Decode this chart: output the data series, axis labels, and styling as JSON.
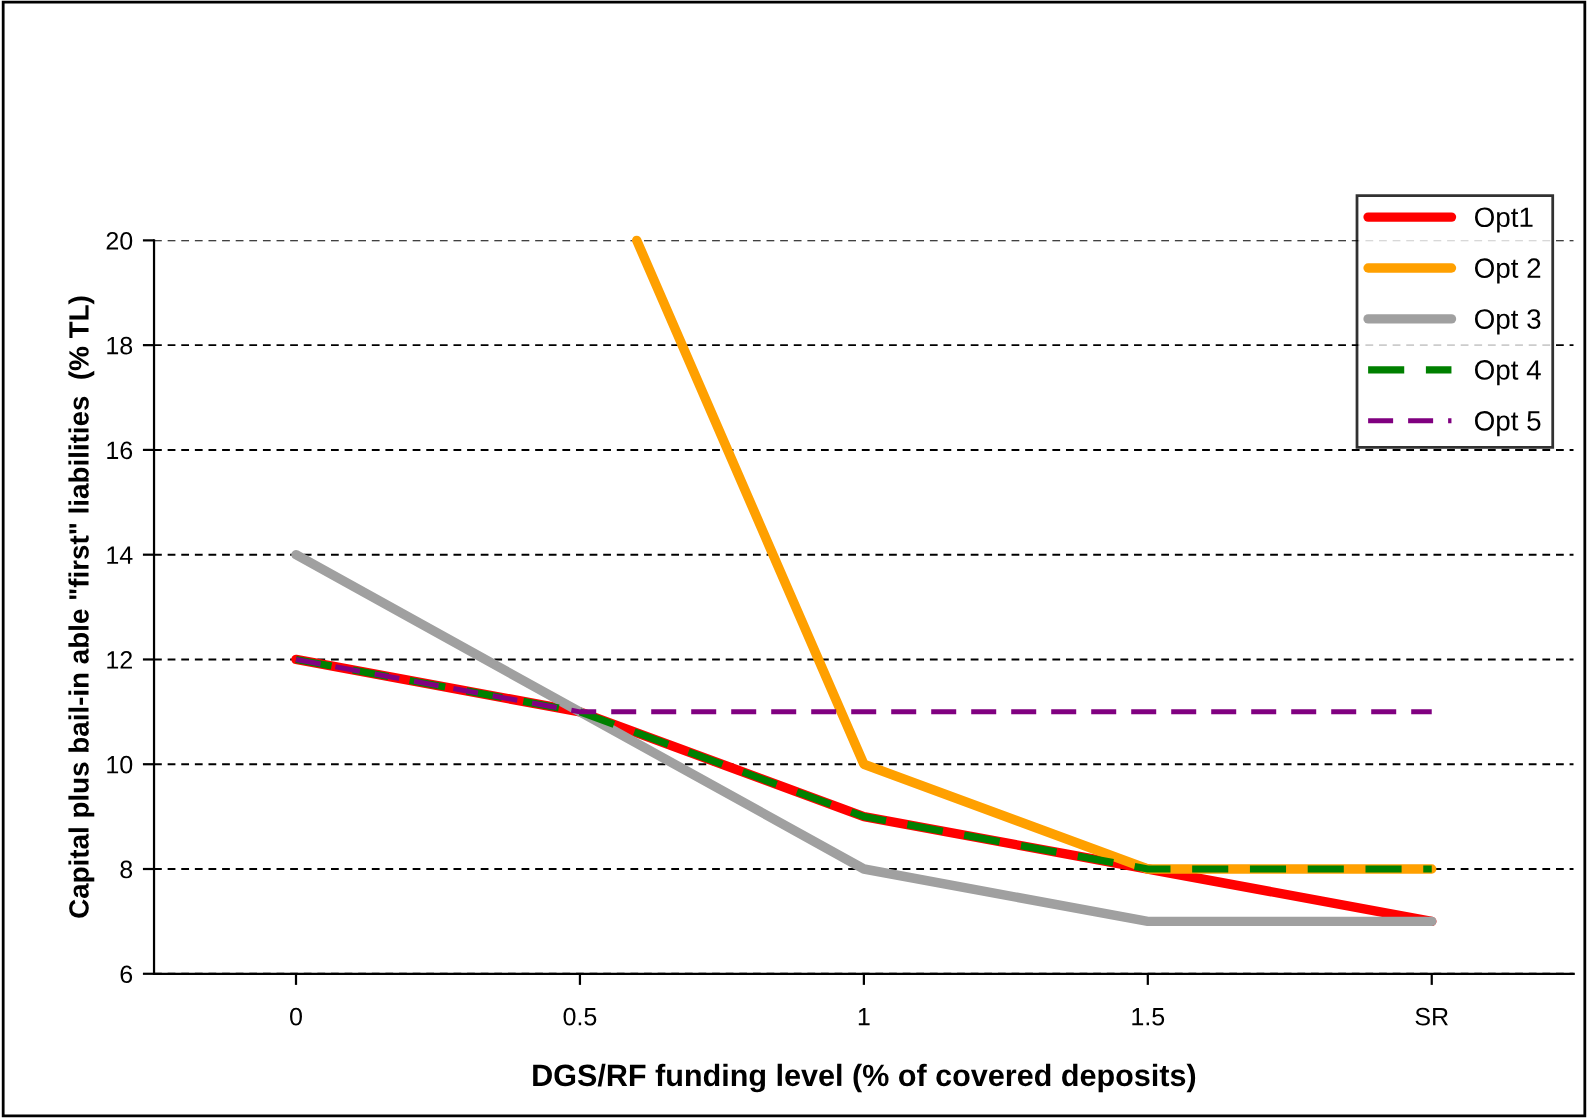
{
  "chart_data": {
    "type": "line",
    "xlabel": "DGS/RF funding level (% of covered deposits)",
    "ylabel": "Capital plus bail-in able \"first\" liabilities  (% TL)",
    "x": [
      0,
      0.5,
      1,
      1.5,
      2
    ],
    "xlim": [
      -0.25,
      2.25
    ],
    "xticks": [
      0,
      0.5,
      1,
      1.5,
      {
        "value": 2,
        "label": "SR"
      }
    ],
    "ylim": [
      6,
      20
    ],
    "yticks": [
      6,
      8,
      10,
      12,
      14,
      16,
      18,
      20
    ],
    "grid": "y",
    "legend": "top right",
    "marker": "none",
    "series": [
      {
        "name": "Opt1",
        "color": "#ff0000",
        "values": [
          12,
          11,
          9,
          8,
          7
        ]
      },
      {
        "name": "Opt 2",
        "color": "#ffa000",
        "x": [
          0.6,
          1,
          1.5,
          2
        ],
        "values": [
          20,
          10,
          8,
          8
        ]
      },
      {
        "name": "Opt 3",
        "color": "#a0a0a0",
        "values": [
          14,
          11,
          8,
          7,
          7
        ]
      },
      {
        "name": "Opt 4",
        "color": "#008000",
        "line_style": "dashed",
        "values": [
          12,
          11,
          9,
          8,
          8
        ]
      },
      {
        "name": "Opt 5",
        "color": "#800080",
        "line_style": "dashed",
        "values": [
          12,
          11,
          11,
          11,
          11
        ]
      }
    ]
  }
}
